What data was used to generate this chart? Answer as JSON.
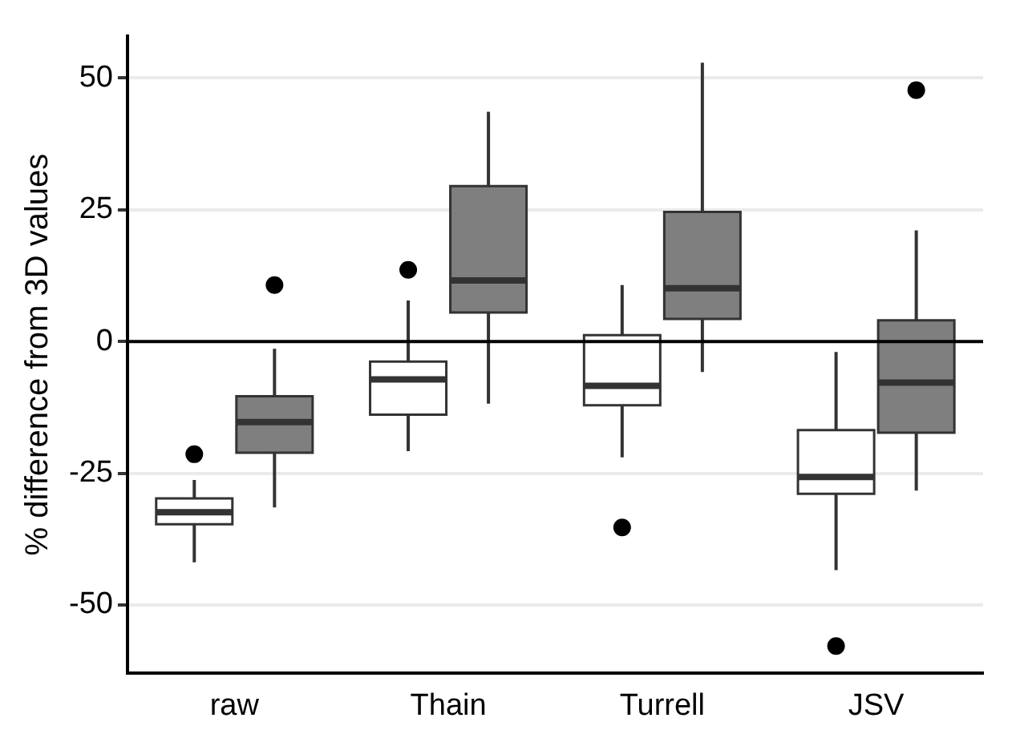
{
  "chart_data": {
    "type": "box",
    "ylabel": "% difference from 3D values",
    "categories": [
      "raw",
      "Thain",
      "Turrell",
      "JSV"
    ],
    "series": [
      {
        "color": "#ffffff",
        "boxes": [
          {
            "low": -41.9,
            "q1": -34.7,
            "median": -32.4,
            "q3": -29.8,
            "high": -26.3,
            "outliers": [
              -21.4
            ]
          },
          {
            "low": -20.8,
            "q1": -13.9,
            "median": -7.2,
            "q3": -3.8,
            "high": 7.8,
            "outliers": [
              13.6
            ]
          },
          {
            "low": -22,
            "q1": -12.1,
            "median": -8.4,
            "q3": 1.2,
            "high": 10.7,
            "outliers": [
              -35.3
            ]
          },
          {
            "low": -43.4,
            "q1": -28.9,
            "median": -25.7,
            "q3": -16.8,
            "high": -2,
            "outliers": [
              -57.8
            ]
          }
        ]
      },
      {
        "color": "#7f7f7f",
        "boxes": [
          {
            "low": -31.5,
            "q1": -21.1,
            "median": -15.3,
            "q3": -10.4,
            "high": -1.4,
            "outliers": [
              10.7
            ]
          },
          {
            "low": -11.8,
            "q1": 5.5,
            "median": 11.6,
            "q3": 29.5,
            "high": 43.6
          },
          {
            "low": -5.8,
            "q1": 4.3,
            "median": 10.1,
            "q3": 24.6,
            "high": 52.9
          },
          {
            "low": -28.3,
            "q1": -17.3,
            "median": -7.8,
            "q3": 4,
            "high": 21.1,
            "outliers": [
              47.7
            ]
          }
        ]
      }
    ],
    "ylim": [
      -63,
      58
    ],
    "yticks": [
      -50,
      -25,
      0,
      25,
      50
    ],
    "ref_lines": [
      {
        "axis": "y",
        "value": 0,
        "color": "#000000"
      }
    ],
    "grid": "y",
    "legend": false
  }
}
